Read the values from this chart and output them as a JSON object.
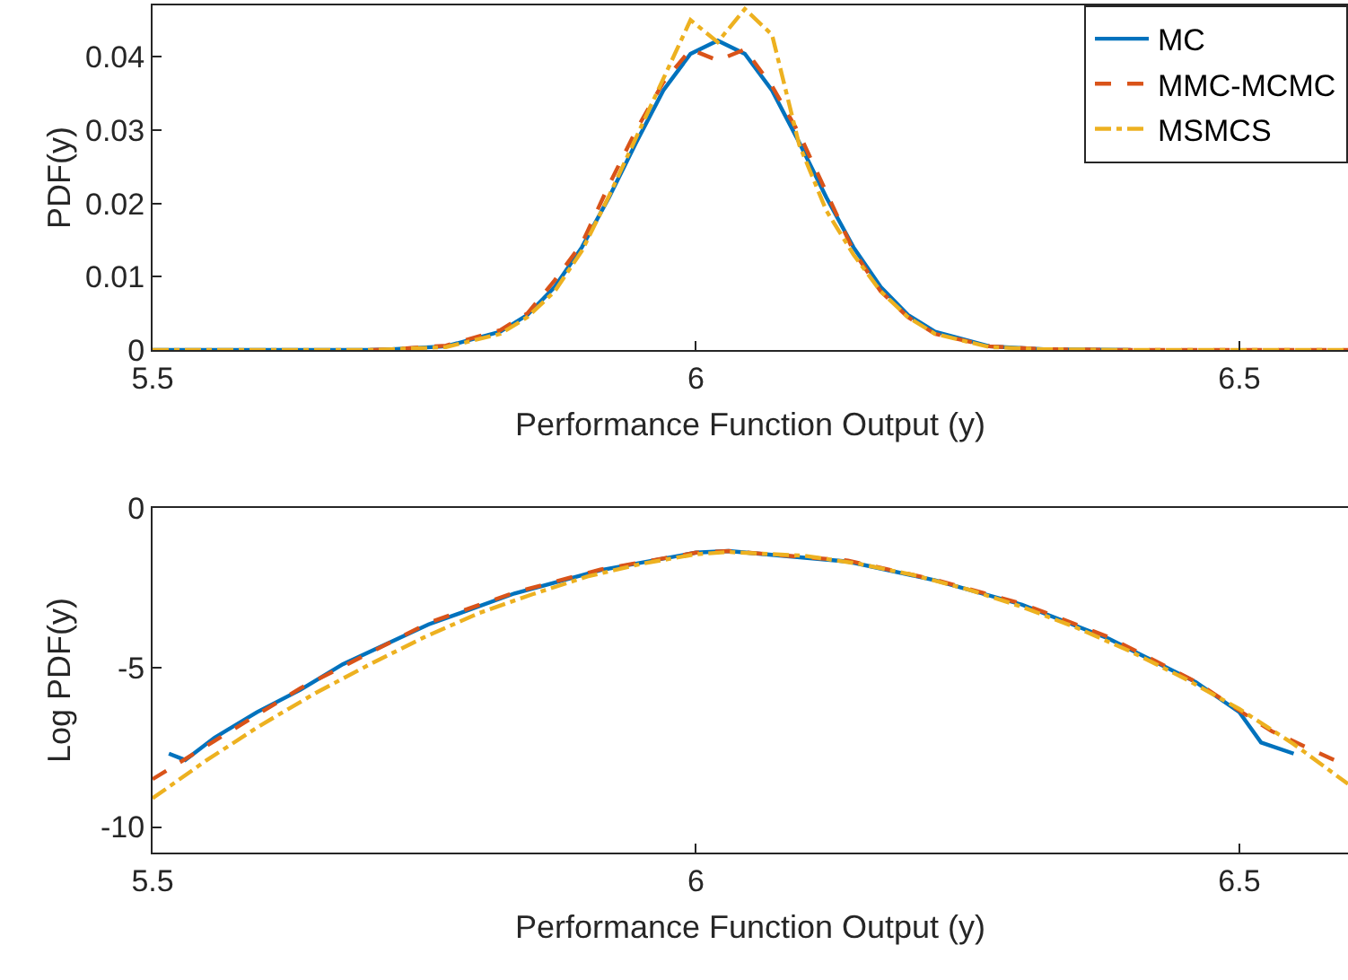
{
  "chart_data": [
    {
      "type": "line",
      "xlabel": "Performance Function Output (y)",
      "ylabel": "PDF(y)",
      "xlim": [
        5.5,
        6.6
      ],
      "xticks": [
        5.5,
        6,
        6.5
      ],
      "ylim": [
        0,
        0.047
      ],
      "yticks": [
        0,
        0.01,
        0.02,
        0.03,
        0.04
      ],
      "grid": false,
      "legend": "top right",
      "marker": "none",
      "series": [
        {
          "name": "MC",
          "color": "#0072bd",
          "line_style": "solid",
          "x": [
            5.5,
            5.6,
            5.7,
            5.72,
            5.77,
            5.82,
            5.845,
            5.87,
            5.895,
            5.92,
            5.945,
            5.97,
            5.995,
            6.02,
            6.045,
            6.07,
            6.095,
            6.12,
            6.145,
            6.17,
            6.195,
            6.22,
            6.27,
            6.32,
            6.4
          ],
          "values": [
            0,
            0,
            0,
            0.0001,
            0.0005,
            0.0025,
            0.0048,
            0.0086,
            0.014,
            0.0208,
            0.0283,
            0.0354,
            0.0404,
            0.0422,
            0.0404,
            0.0354,
            0.0283,
            0.0208,
            0.014,
            0.0086,
            0.0048,
            0.0025,
            0.0005,
            0.0001,
            0
          ]
        },
        {
          "name": "MMC-MCMC",
          "color": "#d95319",
          "line_style": "dashed",
          "x": [
            5.7,
            5.72,
            5.77,
            5.82,
            5.845,
            5.87,
            5.895,
            5.92,
            5.945,
            5.97,
            5.995,
            6.02,
            6.045,
            6.07,
            6.095,
            6.12,
            6.145,
            6.17,
            6.195,
            6.22,
            6.27,
            6.32,
            6.4,
            6.5,
            6.6
          ],
          "values": [
            0,
            0.0001,
            0.0006,
            0.0027,
            0.005,
            0.0095,
            0.0145,
            0.0225,
            0.03,
            0.0365,
            0.041,
            0.0395,
            0.041,
            0.036,
            0.0295,
            0.0215,
            0.0135,
            0.008,
            0.0045,
            0.0022,
            0.0005,
            0.0001,
            0,
            0,
            0
          ]
        },
        {
          "name": "MSMCS",
          "color": "#edb120",
          "line_style": "dashdot",
          "x": [
            5.5,
            5.6,
            5.7,
            5.72,
            5.77,
            5.82,
            5.845,
            5.87,
            5.895,
            5.92,
            5.945,
            5.97,
            5.995,
            6.02,
            6.045,
            6.07,
            6.095,
            6.12,
            6.145,
            6.17,
            6.195,
            6.22,
            6.27,
            6.32,
            6.4,
            6.5,
            6.6
          ],
          "values": [
            0,
            0,
            0,
            0.0001,
            0.0004,
            0.0022,
            0.0045,
            0.008,
            0.0135,
            0.021,
            0.029,
            0.037,
            0.045,
            0.042,
            0.0465,
            0.043,
            0.028,
            0.019,
            0.013,
            0.008,
            0.0045,
            0.0022,
            0.0004,
            0.0001,
            0,
            0,
            0
          ]
        }
      ]
    },
    {
      "type": "line",
      "xlabel": "Performance Function Output (y)",
      "ylabel": "Log PDF(y)",
      "xlim": [
        5.5,
        6.6
      ],
      "xticks": [
        5.5,
        6,
        6.5
      ],
      "ylim": [
        -10.8,
        0
      ],
      "yticks": [
        -10,
        -5,
        0
      ],
      "grid": false,
      "legend": false,
      "marker": "none",
      "series": [
        {
          "color": "#0072bd",
          "line_style": "solid",
          "x": [
            5.515,
            5.53,
            5.557,
            5.596,
            5.636,
            5.675,
            5.754,
            5.833,
            5.912,
            6.0,
            6.03,
            6.14,
            6.22,
            6.3,
            6.38,
            6.46,
            6.5,
            6.52,
            6.55
          ],
          "values": [
            -7.7,
            -7.9,
            -7.2,
            -6.4,
            -5.7,
            -4.9,
            -3.65,
            -2.68,
            -1.95,
            -1.4,
            -1.35,
            -1.68,
            -2.27,
            -3.03,
            -4.1,
            -5.46,
            -6.4,
            -7.35,
            -7.7
          ]
        },
        {
          "color": "#d95319",
          "line_style": "dashed",
          "x": [
            5.5,
            5.557,
            5.636,
            5.754,
            5.833,
            5.912,
            6.0,
            6.03,
            6.14,
            6.22,
            6.3,
            6.38,
            6.46,
            6.5,
            6.53,
            6.6
          ],
          "values": [
            -8.5,
            -7.3,
            -5.65,
            -3.6,
            -2.65,
            -1.93,
            -1.4,
            -1.35,
            -1.65,
            -2.25,
            -3.0,
            -4.05,
            -5.45,
            -6.35,
            -7.0,
            -8.1
          ]
        },
        {
          "color": "#edb120",
          "line_style": "dashdot",
          "x": [
            5.5,
            5.55,
            5.6,
            5.65,
            5.7,
            5.75,
            5.8,
            5.85,
            5.9,
            5.95,
            6.0,
            6.03,
            6.1,
            6.15,
            6.2,
            6.25,
            6.3,
            6.35,
            6.4,
            6.45,
            6.5,
            6.55,
            6.6
          ],
          "values": [
            -9.1,
            -7.9,
            -6.8,
            -5.8,
            -4.9,
            -4.05,
            -3.3,
            -2.7,
            -2.15,
            -1.75,
            -1.45,
            -1.38,
            -1.5,
            -1.75,
            -2.1,
            -2.55,
            -3.1,
            -3.75,
            -4.5,
            -5.35,
            -6.3,
            -7.4,
            -8.65
          ]
        }
      ]
    }
  ]
}
